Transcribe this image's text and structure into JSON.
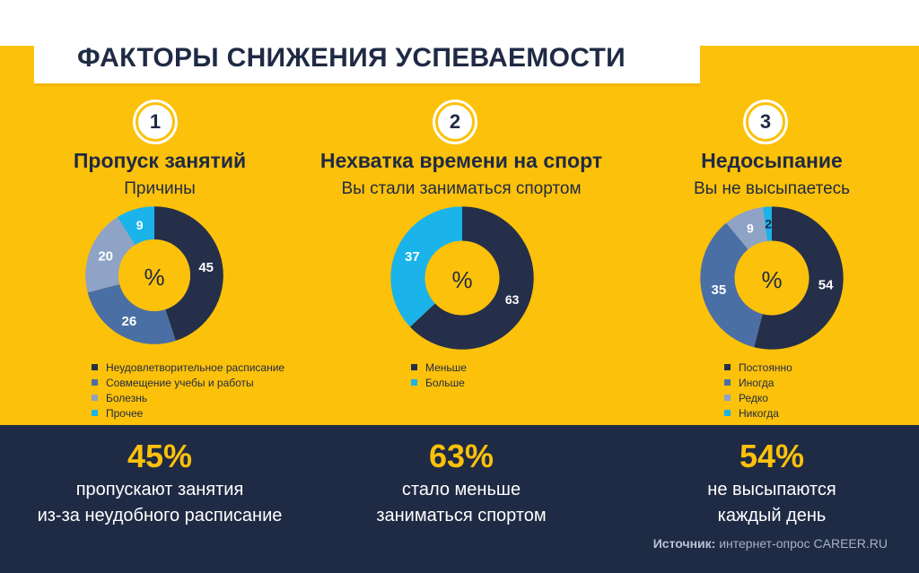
{
  "title": "ФАКТОРЫ СНИЖЕНИЯ УСПЕВАЕМОСТИ",
  "colors": {
    "yellow": "#fcc10a",
    "navy": "#1f2a44",
    "dark": "#252f4a",
    "steel": "#4a6fa5",
    "slate": "#8fa3c6",
    "cyan": "#1ab3ea"
  },
  "chart_data": [
    {
      "type": "pie",
      "number": "1",
      "title": "Пропуск  занятий",
      "subtitle": "Причины",
      "center_label": "%",
      "slices": [
        {
          "label": "Неудовлетворительное расписание",
          "value": 45,
          "value_label": "45",
          "color": "#252f4a"
        },
        {
          "label": "Совмещение учебы и работы",
          "value": 26,
          "value_label": "26",
          "color": "#4a6fa5"
        },
        {
          "label": "Болезнь",
          "value": 20,
          "value_label": "20",
          "color": "#8fa3c6"
        },
        {
          "label": "Прочее",
          "value": 9,
          "value_label": "9",
          "color": "#1ab3ea"
        }
      ]
    },
    {
      "type": "pie",
      "number": "2",
      "title": "Нехватка времени на спорт",
      "subtitle": "Вы стали заниматься спортом",
      "center_label": "%",
      "slices": [
        {
          "label": "Меньше",
          "value": 63,
          "value_label": "63",
          "color": "#252f4a"
        },
        {
          "label": "Больше",
          "value": 37,
          "value_label": "37",
          "color": "#1ab3ea"
        }
      ]
    },
    {
      "type": "pie",
      "number": "3",
      "title": "Недосыпание",
      "subtitle": "Вы не высыпаетесь",
      "center_label": "%",
      "slices": [
        {
          "label": "Постоянно",
          "value": 54,
          "value_label": "54",
          "color": "#252f4a"
        },
        {
          "label": "Иногда",
          "value": 35,
          "value_label": "35",
          "color": "#4a6fa5"
        },
        {
          "label": "Редко",
          "value": 9,
          "value_label": "9",
          "color": "#8fa3c6"
        },
        {
          "label": "Никогда",
          "value": 2,
          "value_label": "2",
          "color": "#1ab3ea"
        }
      ]
    }
  ],
  "stats": [
    {
      "value": "45%",
      "line1": "пропускают занятия",
      "line2": "из-за неудобного расписание"
    },
    {
      "value": "63%",
      "line1": "стало меньше",
      "line2": "заниматься спортом"
    },
    {
      "value": "54%",
      "line1": "не высыпаются",
      "line2": "каждый день"
    }
  ],
  "source": {
    "label": "Источник:",
    "text": "интернет-опрос CAREER.RU"
  }
}
